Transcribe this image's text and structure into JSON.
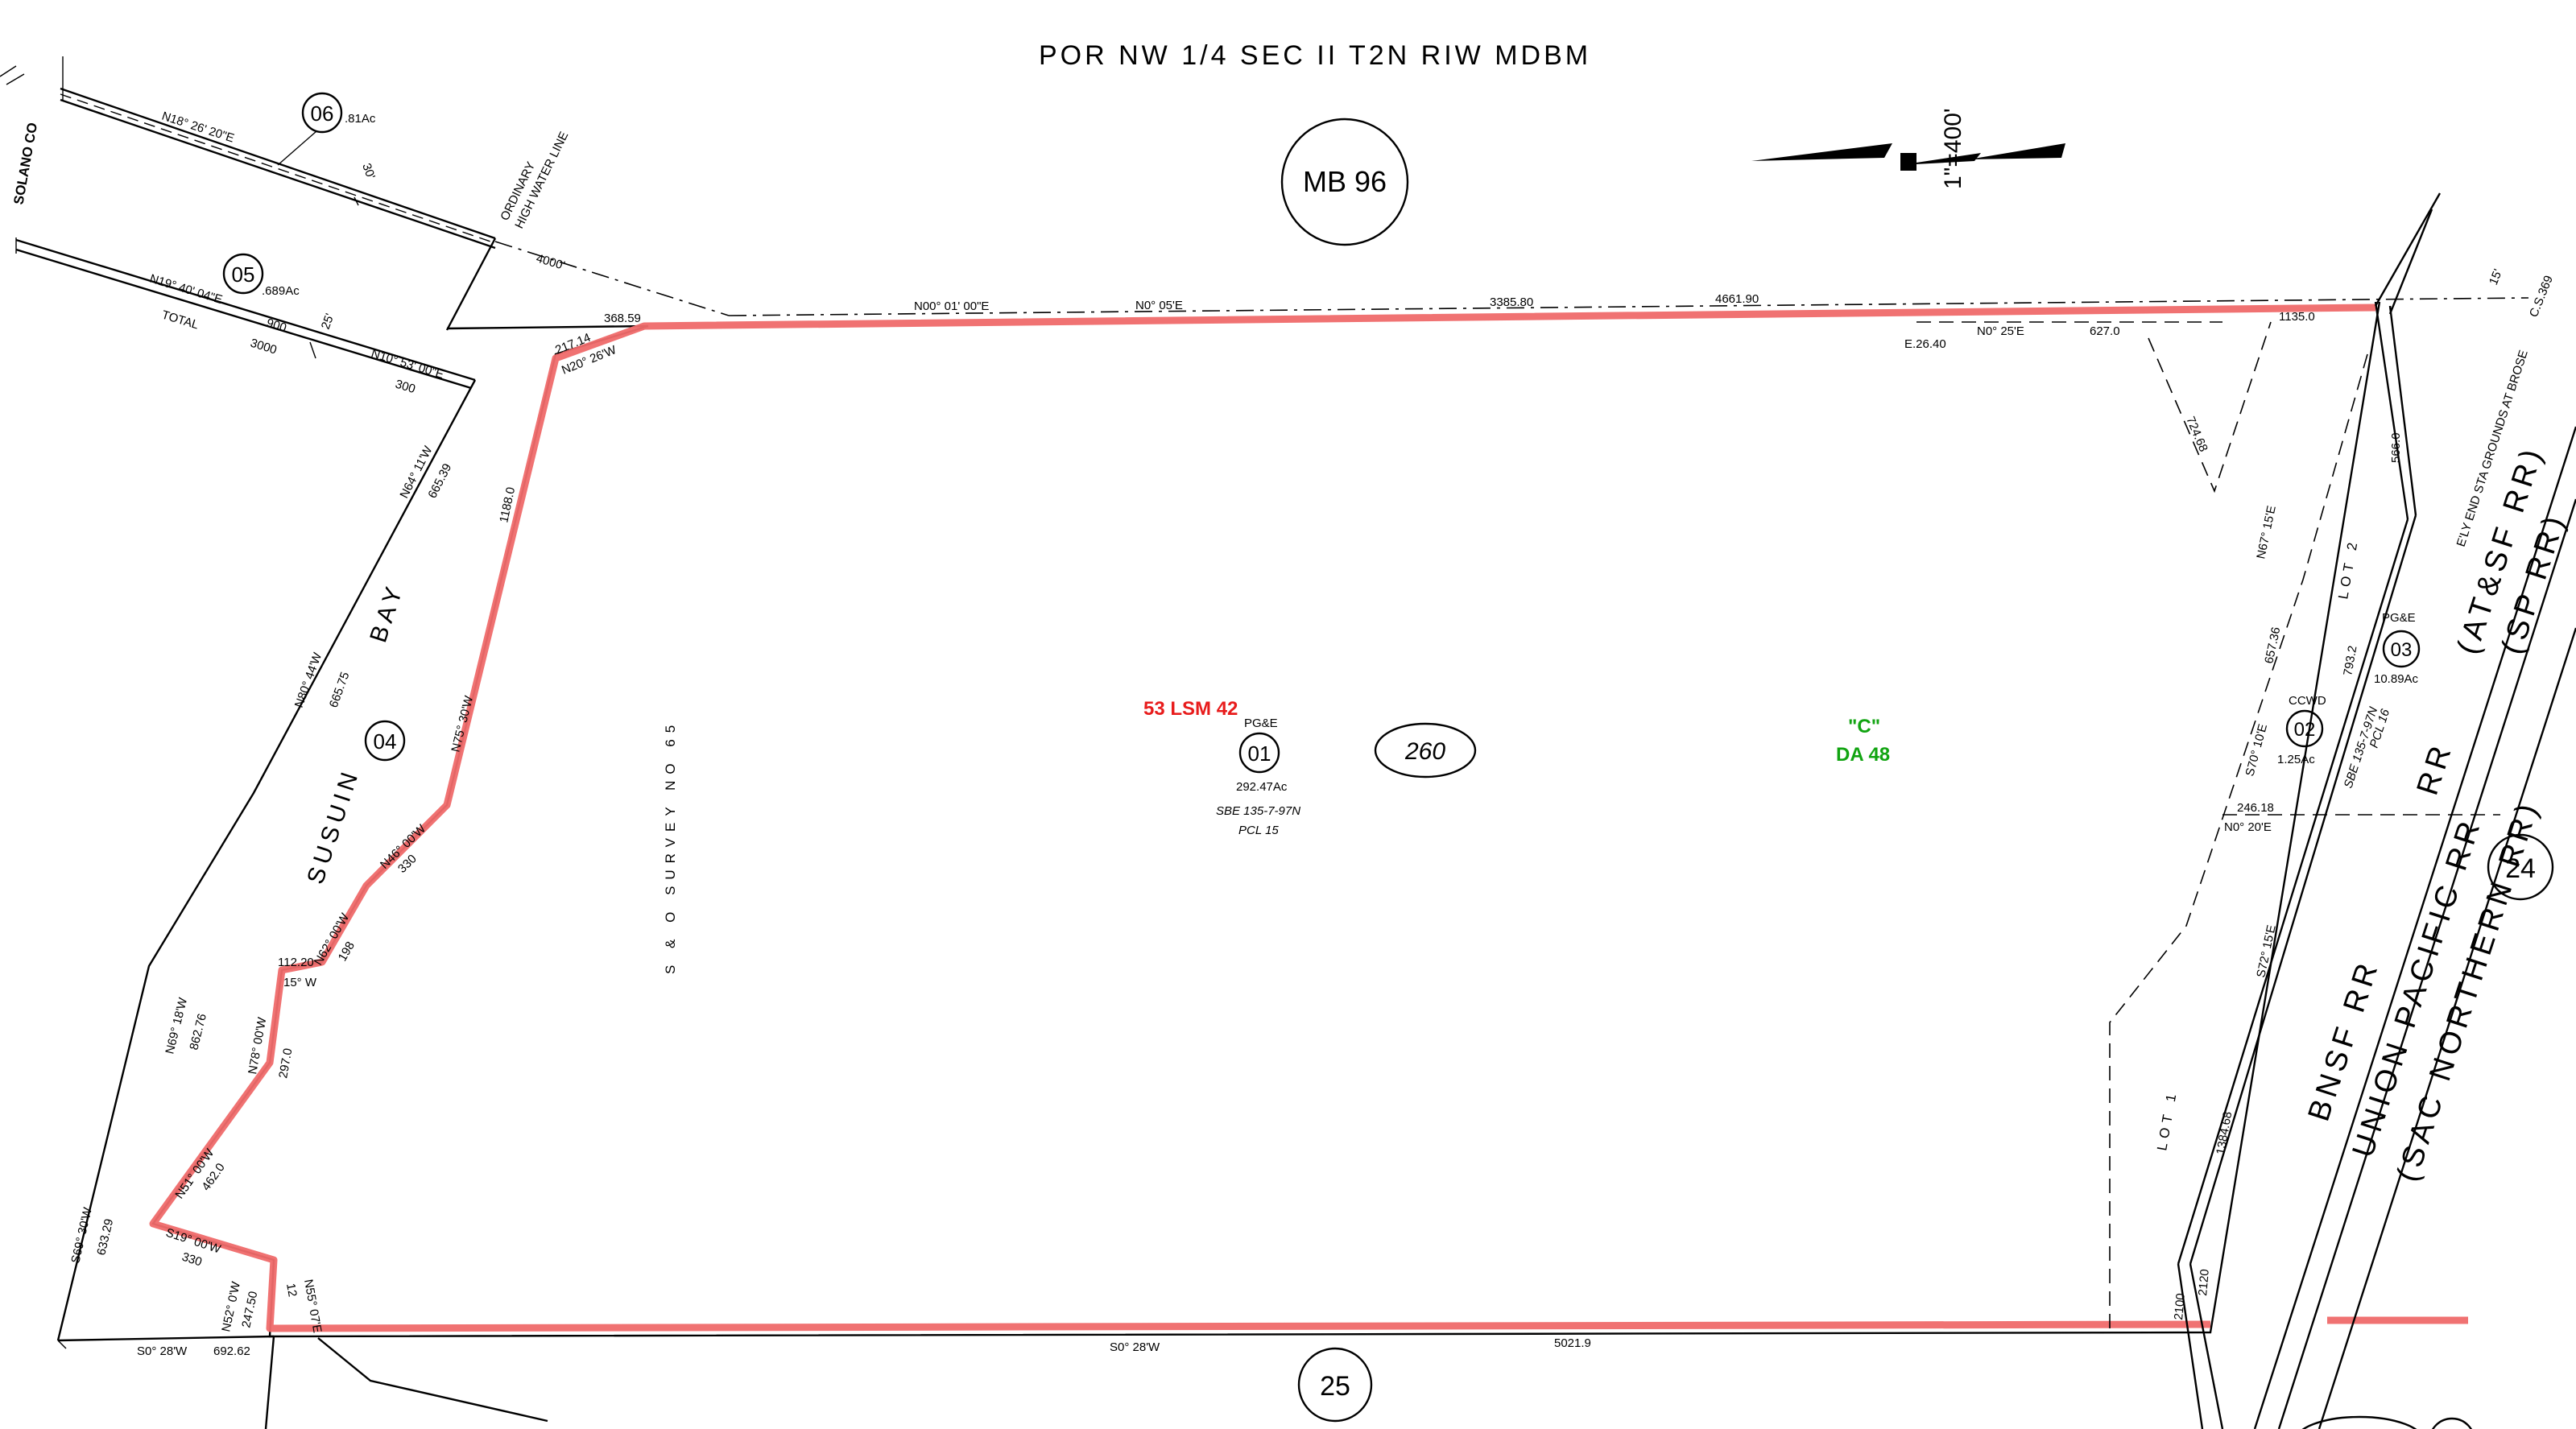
{
  "title": "POR NW 1/4 SEC II T2N RIW MDBM",
  "map_book": "MB 96",
  "page_number": "260",
  "scale": "1\"=400'",
  "adjacent_pages": {
    "north_east": "24",
    "south": "25"
  },
  "county_label": "SOLANO CO",
  "bay_label": {
    "word1": "SUSUIN",
    "word2": "BAY"
  },
  "water_line_label": {
    "line1": "ORDINARY",
    "line2": "HIGH WATER LINE"
  },
  "survey_label": "S & O SURVEY NO 65",
  "overlay": {
    "red_code": "53 LSM 42",
    "green_code": "\"C\"",
    "green_code2": "DA 48"
  },
  "parcels": [
    {
      "num": "01",
      "owner": "PG&E",
      "acres": "292.47Ac",
      "ref1": "SBE 135-7-97N",
      "ref2": "PCL 15"
    },
    {
      "num": "02",
      "owner": "CCWD",
      "acres": "1.25Ac"
    },
    {
      "num": "03",
      "owner": "PG&E",
      "acres": "10.89Ac"
    },
    {
      "num": "04"
    },
    {
      "num": "05",
      "acres": ".689Ac"
    },
    {
      "num": "06",
      "acres": ".81Ac"
    }
  ],
  "parcel_02_03_ref": {
    "ref1": "SBE 135-7-97N",
    "ref2": "PCL 16"
  },
  "lots": {
    "lot1": "LOT 1",
    "lot2": "LOT 2"
  },
  "railroads": {
    "line1": "(AT&SF RR)",
    "line2": "(SP RR)",
    "line3": "RR",
    "line4": "BNSF RR",
    "line5": "UNION PACIFIC RR",
    "line6": "(SAC NORTHERN RR)"
  },
  "sta_note": "E'LY END STA GROUNDS AT BROSE",
  "measurements": {
    "top_n01": "N00° 01' 00\"E",
    "top_n05": "N0° 05'E",
    "top_3385": "3385.80",
    "top_4661": "4661.90",
    "e2640": "E.26.40",
    "n025": "N0° 25'E",
    "d627": "627.0",
    "d1135": "1135.0",
    "d15": "15'",
    "cs369": "C.S.369",
    "d724": "724.68",
    "n67": "N67° 15'E",
    "d566": "566.0",
    "d657": "657.36",
    "s70": "S70° 10'E",
    "d793": "793.2",
    "d246": "246.18",
    "n020": "N0° 20'E",
    "s72": "S72° 15'E",
    "d1384": "1384.68",
    "d2120": "2120",
    "d2100": "2100",
    "bot_s028": "S0° 28'W",
    "bot_5021": "5021.9",
    "bl_s028": "S0° 28'W",
    "bl_692": "692.62",
    "n18": "N18° 26' 20\"E",
    "d30": "30'",
    "n19": "N19° 40' 04\"E",
    "total": "TOTAL",
    "d900": "900",
    "d3000": "3000",
    "d25": "25'",
    "n10": "N10° 53' 00\"E",
    "d300": "300",
    "d4000": "4000'",
    "d36859": "368.59",
    "d21714": "217.14",
    "n20": "N20° 26'W",
    "n64": "N64° 11'W",
    "d66539": "665.39",
    "d1188": "1188.0",
    "n80": "N80° 44'W",
    "d66575": "665.75",
    "n75": "N75° 30'W",
    "n46": "N46° 00'W",
    "d330a": "330",
    "n62": "N62° 00'W",
    "d198": "198",
    "d11220": "112.20",
    "w15": "15° W",
    "n69": "N69° 18'W",
    "d86276": "862.76",
    "n78": "N78° 00'W",
    "d2970": "297.0",
    "n51": "N51° 00'W",
    "d4620": "462.0",
    "s69": "S69° 30'W",
    "d63329": "633.29",
    "s19": "S19° 00'W",
    "d330b": "330",
    "n52": "N52° 0'W",
    "d24750": "247.50",
    "n55": "N55° 07'E",
    "d12": "12"
  }
}
